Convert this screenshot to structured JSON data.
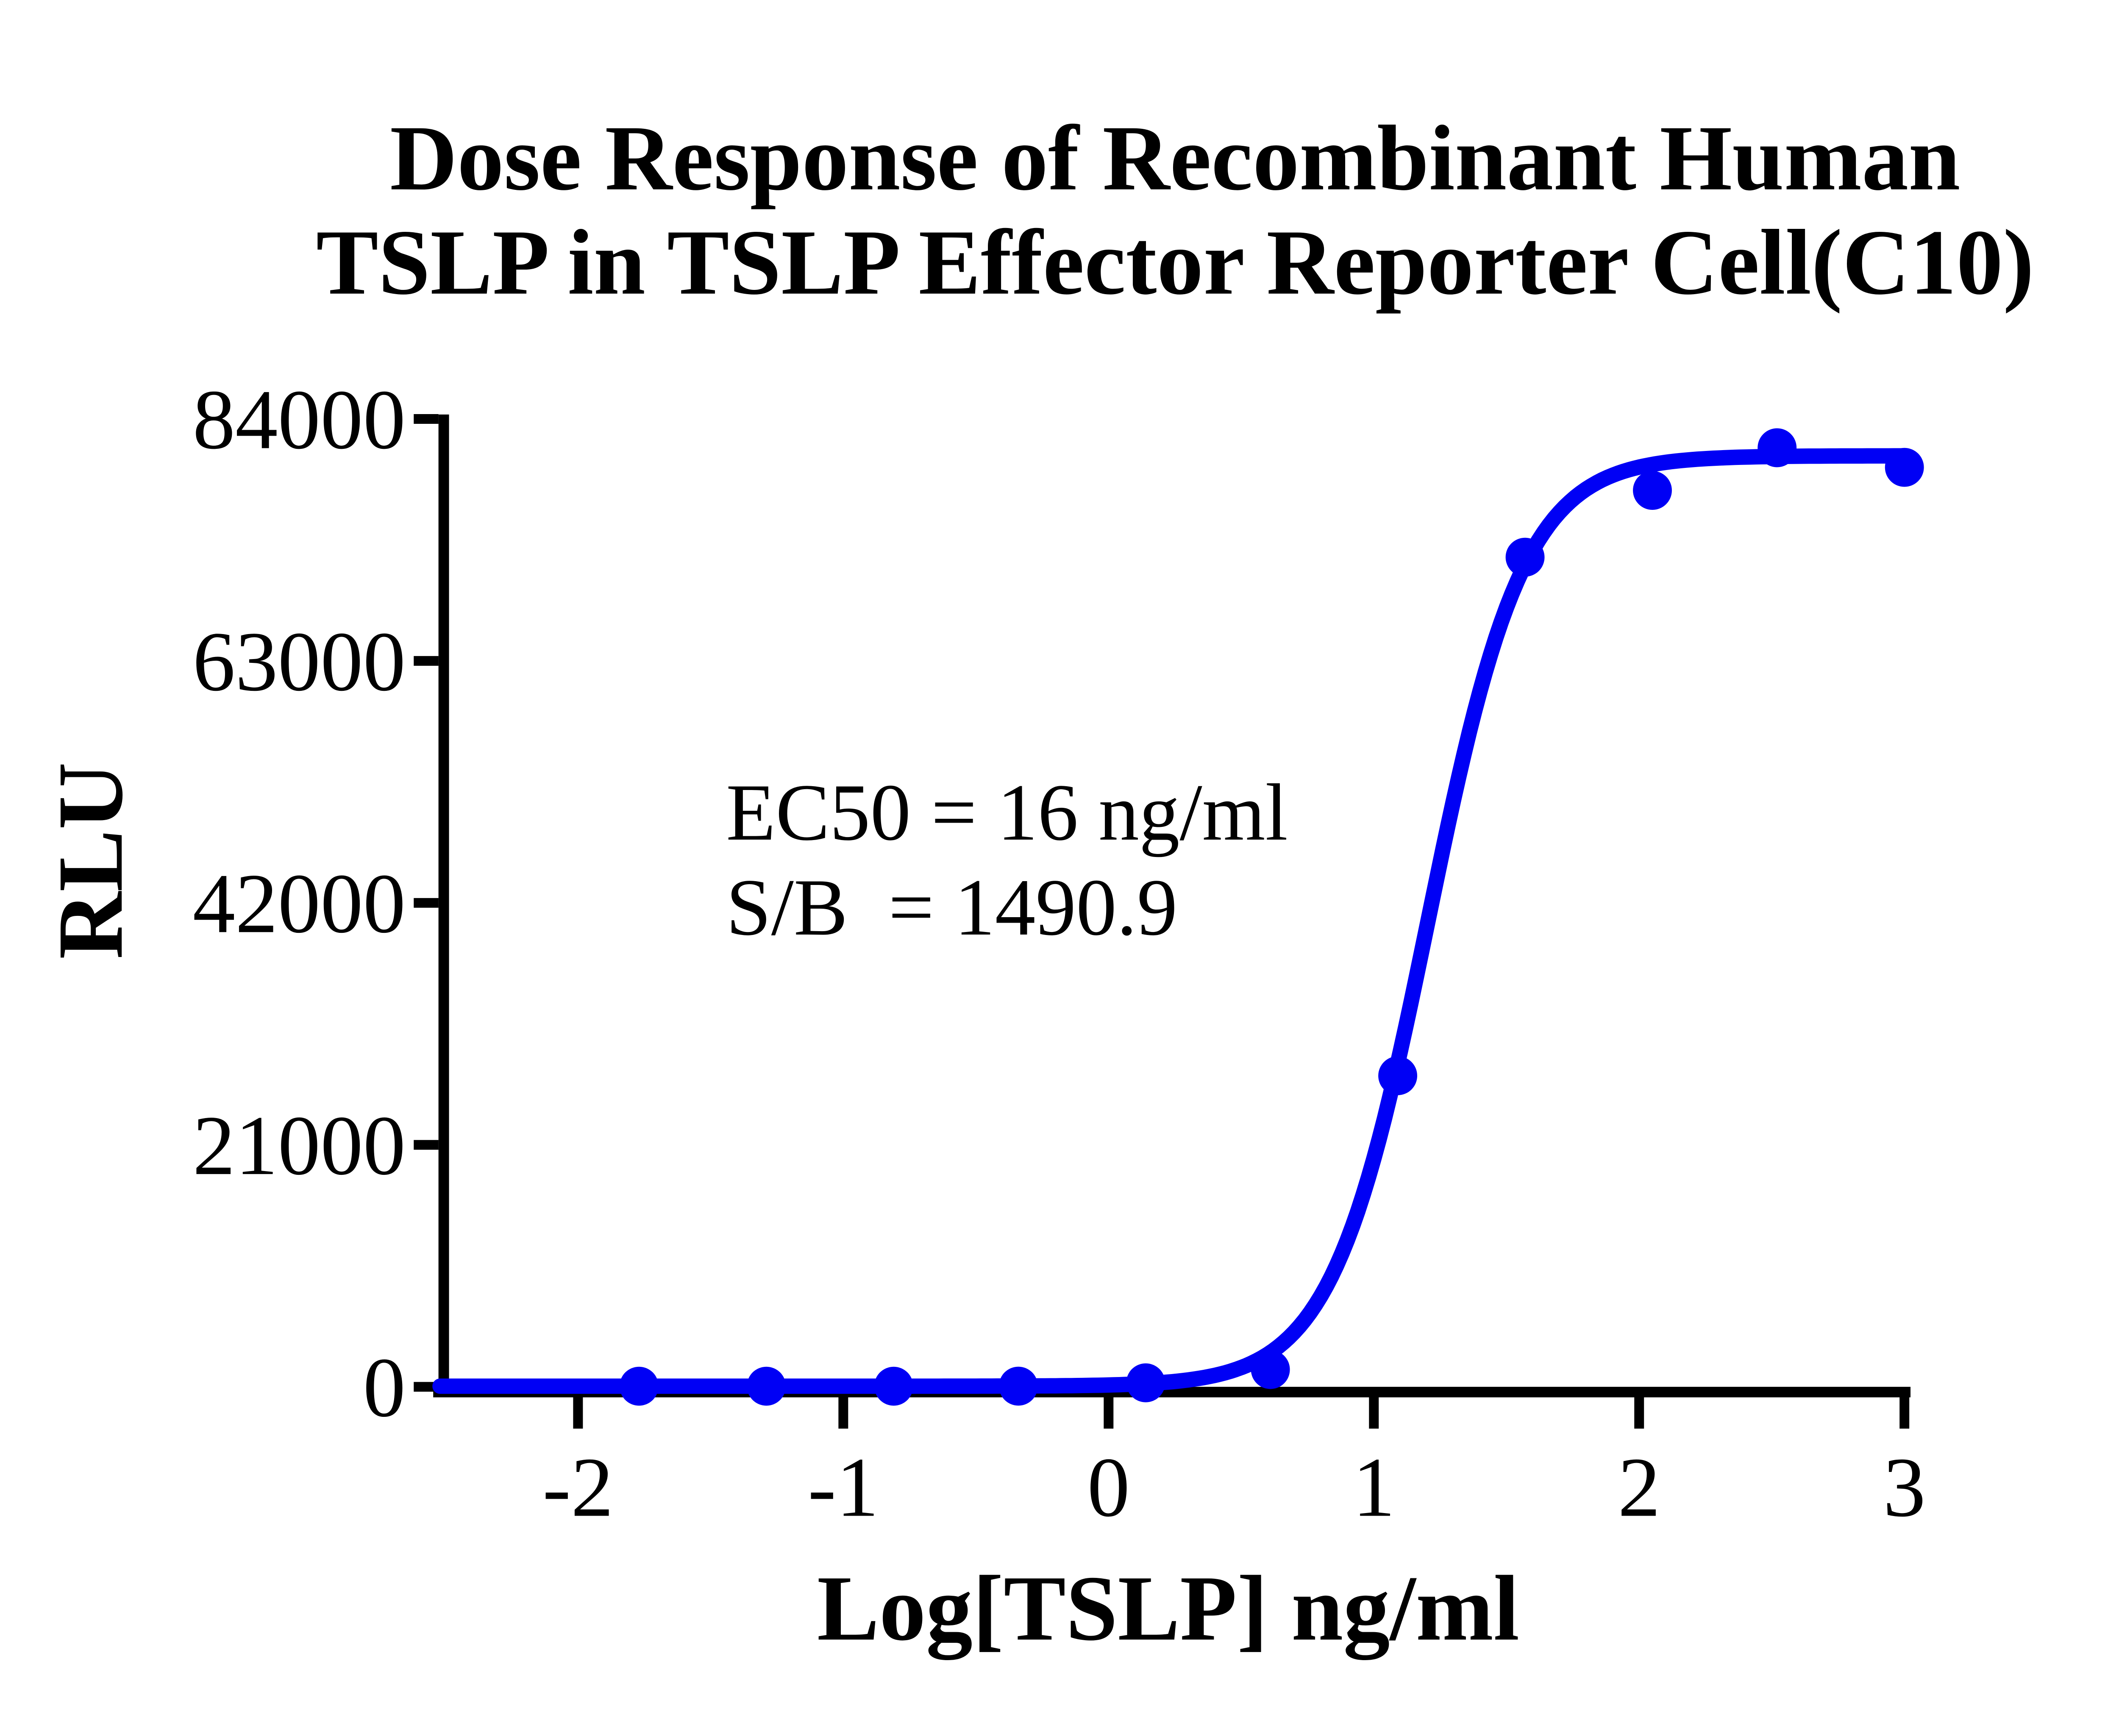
{
  "title": {
    "line1": "Dose Response of Recombinant Human",
    "line2": "TSLP in TSLP Effector Reporter Cell(C10)"
  },
  "chart_data": {
    "type": "line",
    "title": "Dose Response of Recombinant Human TSLP in TSLP Effector Reporter Cell(C10)",
    "xlabel": "Log[TSLP] ng/ml",
    "ylabel": "RLU",
    "x_ticks": [
      -2,
      -1,
      0,
      1,
      2,
      3
    ],
    "y_ticks": [
      0,
      21000,
      42000,
      63000,
      84000
    ],
    "xlim": [
      -2.52,
      3
    ],
    "ylim": [
      0,
      84000
    ],
    "grid": false,
    "legend": "none",
    "annotation": {
      "line1": "EC50 = 16 ng/ml",
      "line2": "S/B  = 1490.9"
    },
    "ec50_ng_ml": 16,
    "s_over_b": 1490.9,
    "series": [
      {
        "name": "TSLP",
        "color": "#0000F5",
        "marker": "circle",
        "points": [
          {
            "log_conc": -1.77,
            "rlu": 55
          },
          {
            "log_conc": -1.29,
            "rlu": 55
          },
          {
            "log_conc": -0.81,
            "rlu": 55
          },
          {
            "log_conc": -0.34,
            "rlu": 60
          },
          {
            "log_conc": 0.14,
            "rlu": 350
          },
          {
            "log_conc": 0.61,
            "rlu": 1500
          },
          {
            "log_conc": 1.09,
            "rlu": 27000
          },
          {
            "log_conc": 1.57,
            "rlu": 72000
          },
          {
            "log_conc": 2.05,
            "rlu": 77800
          },
          {
            "log_conc": 2.52,
            "rlu": 81500
          },
          {
            "log_conc": 3.0,
            "rlu": 79800
          }
        ]
      }
    ],
    "fit": {
      "model": "4PL",
      "bottom": 55,
      "top": 80800,
      "log_ec50": 1.204,
      "hill": 2.4
    },
    "axis_color": "#000000"
  }
}
